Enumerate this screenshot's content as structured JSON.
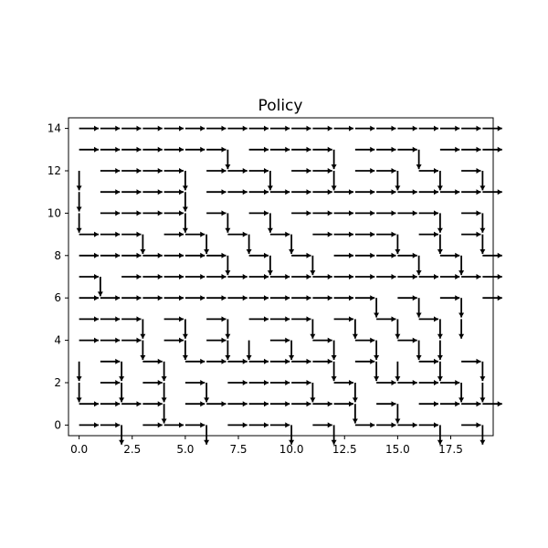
{
  "chart_data": {
    "type": "quiver",
    "title": "Policy",
    "xlabel": "",
    "ylabel": "",
    "xlim": [
      -0.5,
      19.5
    ],
    "ylim": [
      14.5,
      -0.5
    ],
    "y_inverted": true,
    "grid": false,
    "x_ticks": [
      0.0,
      2.5,
      5.0,
      7.5,
      10.0,
      12.5,
      15.0,
      17.5
    ],
    "x_tick_labels": [
      "0.0",
      "2.5",
      "5.0",
      "7.5",
      "10.0",
      "12.5",
      "15.0",
      "17.5"
    ],
    "y_ticks": [
      0,
      2,
      4,
      6,
      8,
      10,
      12,
      14
    ],
    "y_tick_labels": [
      "0",
      "2",
      "4",
      "6",
      "8",
      "10",
      "12",
      "14"
    ],
    "arrow_color": "#000000",
    "arrow_legend": {
      "R": "right",
      "D": "down",
      "L": "left",
      "U": "up",
      ".": "no arrow"
    },
    "grid_rows": [
      "RRD.RRRD.RRRD.RD.RRRRD.RD",
      "RRRRD.RRRRRRRRD.RD.RRRRD.D",
      "D.RD.RD.RD.RRRRD.RD.RRRRD.D",
      "D.RD.RD.RRRRRRRD.RD.D.RD.RD.D",
      "RRRD.RD.RD.D.RD.RD.RD.RD.D",
      "RRRD.RD.RD.RRRD.RD.RD.RD.D",
      "RRRRRRRRRRRRRRD.RD.RD.RD.D",
      "RD.RRRRRRRRRRRRRRRRRRRRD.D",
      "RRRRRRRD.RD.RD.RRRRD.RD.RD.D",
      "RRRD.RRD.RD.RD.RRRRD.RD.RD.D",
      "D.RRRRD.RD.RD.RRRRRRRD.RD.D",
      "D.RRRRD.RRRRRRRRRRRRRRRRRRD",
      "D.RRRRD.RRRD.RRD.RRD.RD.RD.D",
      "RRRRRRRD.RRRRD.RRRD.RRRD.RD.D",
      "RRRRRRRRRRRRRRRRRRRRRRRRR"
    ]
  }
}
